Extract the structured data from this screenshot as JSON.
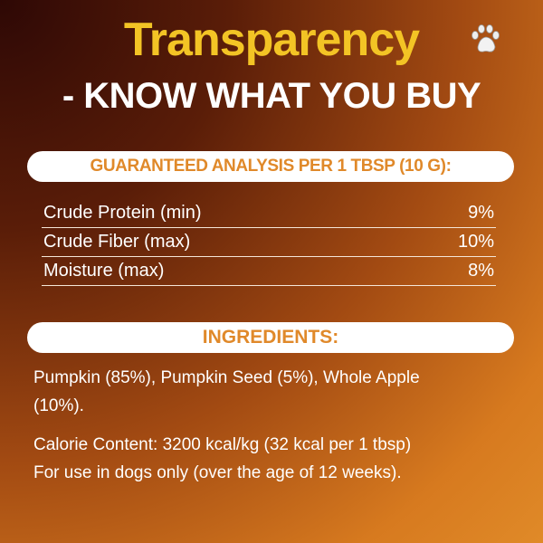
{
  "header": {
    "title": "Transparency",
    "subtitle": "- KNOW WHAT YOU BUY",
    "icon": "paw-icon"
  },
  "analysis": {
    "heading": "GUARANTEED ANALYSIS PER 1 TBSP (10 G):",
    "rows": [
      {
        "label": "Crude Protein (min)",
        "value": "9%"
      },
      {
        "label": "Crude Fiber (max)",
        "value": "10%"
      },
      {
        "label": "Moisture (max)",
        "value": "8%"
      }
    ]
  },
  "ingredients": {
    "heading": "INGREDIENTS:",
    "list": "Pumpkin (85%), Pumpkin Seed (5%), Whole Apple (10%).",
    "calorie": "Calorie Content: 3200 kcal/kg (32 kcal per 1 tbsp)",
    "usage": "For use in dogs only (over the age of 12 weeks)."
  },
  "colors": {
    "title": "#f3c425",
    "heading": "#e0892a"
  }
}
